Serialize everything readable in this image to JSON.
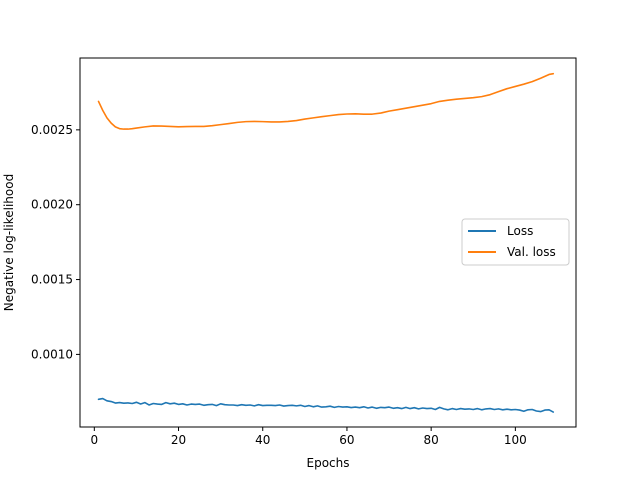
{
  "chart_data": {
    "type": "line",
    "title": "",
    "xlabel": "Epochs",
    "ylabel": "Negative log-likelihood",
    "xlim": [
      -3.4,
      114.4
    ],
    "ylim": [
      0.000515,
      0.00298
    ],
    "xticks": [
      0,
      20,
      40,
      60,
      80,
      100
    ],
    "yticks": [
      0.001,
      0.0015,
      0.002,
      0.0025
    ],
    "xtick_labels": [
      "0",
      "20",
      "40",
      "60",
      "80",
      "100"
    ],
    "ytick_labels": [
      "0.0010",
      "0.0015",
      "0.0020",
      "0.0025"
    ],
    "grid": false,
    "legend": {
      "position": "center-right"
    },
    "series": [
      {
        "name": "Loss",
        "color": "#1f77b4",
        "x": [
          1,
          2,
          3,
          4,
          5,
          6,
          7,
          8,
          9,
          10,
          11,
          12,
          13,
          14,
          15,
          16,
          17,
          18,
          19,
          20,
          21,
          22,
          23,
          24,
          25,
          26,
          27,
          28,
          29,
          30,
          31,
          32,
          33,
          34,
          35,
          36,
          37,
          38,
          39,
          40,
          41,
          42,
          43,
          44,
          45,
          46,
          47,
          48,
          49,
          50,
          51,
          52,
          53,
          54,
          55,
          56,
          57,
          58,
          59,
          60,
          61,
          62,
          63,
          64,
          65,
          66,
          67,
          68,
          69,
          70,
          71,
          72,
          73,
          74,
          75,
          76,
          77,
          78,
          79,
          80,
          81,
          82,
          83,
          84,
          85,
          86,
          87,
          88,
          89,
          90,
          91,
          92,
          93,
          94,
          95,
          96,
          97,
          98,
          99,
          100,
          101,
          102,
          103,
          104,
          105,
          106,
          107,
          108,
          109
        ],
        "values": [
          0.0007,
          0.000705,
          0.00069,
          0.000685,
          0.000675,
          0.000678,
          0.000674,
          0.000676,
          0.000672,
          0.00068,
          0.000669,
          0.000678,
          0.000662,
          0.000672,
          0.000668,
          0.000666,
          0.000678,
          0.00067,
          0.000674,
          0.000666,
          0.00067,
          0.000662,
          0.000668,
          0.000666,
          0.000668,
          0.00066,
          0.000664,
          0.000666,
          0.000658,
          0.00067,
          0.000664,
          0.000662,
          0.000662,
          0.000658,
          0.000664,
          0.00066,
          0.000662,
          0.000656,
          0.000664,
          0.000658,
          0.00066,
          0.00066,
          0.000658,
          0.000662,
          0.000655,
          0.000658,
          0.00066,
          0.000656,
          0.00066,
          0.000652,
          0.000658,
          0.00065,
          0.000656,
          0.000648,
          0.00065,
          0.000654,
          0.000646,
          0.000652,
          0.000648,
          0.00065,
          0.000645,
          0.000648,
          0.000644,
          0.00065,
          0.000642,
          0.000648,
          0.00064,
          0.000646,
          0.000644,
          0.000648,
          0.00064,
          0.000644,
          0.000638,
          0.000646,
          0.000638,
          0.000644,
          0.000636,
          0.000642,
          0.000638,
          0.00064,
          0.000632,
          0.000646,
          0.000636,
          0.00063,
          0.000638,
          0.000632,
          0.000638,
          0.000634,
          0.000636,
          0.000632,
          0.000638,
          0.00063,
          0.000636,
          0.000638,
          0.000632,
          0.000636,
          0.00063,
          0.000634,
          0.00063,
          0.000632,
          0.000628,
          0.00062,
          0.00063,
          0.000632,
          0.000622,
          0.000618,
          0.000628,
          0.00063,
          0.000615
        ]
      },
      {
        "name": "Val. loss",
        "color": "#ff7f0e",
        "x": [
          1,
          2,
          3,
          4,
          5,
          6,
          7,
          8,
          9,
          10,
          12,
          14,
          16,
          18,
          20,
          22,
          24,
          26,
          28,
          30,
          32,
          34,
          36,
          38,
          40,
          42,
          44,
          46,
          48,
          50,
          52,
          54,
          56,
          58,
          60,
          62,
          64,
          66,
          68,
          70,
          72,
          74,
          76,
          78,
          80,
          82,
          84,
          86,
          88,
          90,
          92,
          94,
          96,
          98,
          100,
          102,
          104,
          106,
          108,
          109
        ],
        "values": [
          0.00269,
          0.00263,
          0.00258,
          0.002545,
          0.00252,
          0.002508,
          0.002505,
          0.002505,
          0.002508,
          0.002512,
          0.00252,
          0.002526,
          0.002525,
          0.002523,
          0.00252,
          0.002522,
          0.002523,
          0.002523,
          0.002528,
          0.002535,
          0.002542,
          0.00255,
          0.002555,
          0.002556,
          0.002555,
          0.002553,
          0.002553,
          0.002556,
          0.002562,
          0.002572,
          0.00258,
          0.002588,
          0.002595,
          0.002602,
          0.002606,
          0.002607,
          0.002605,
          0.002605,
          0.002612,
          0.002625,
          0.002635,
          0.002645,
          0.002655,
          0.002665,
          0.002675,
          0.00269,
          0.002698,
          0.002705,
          0.00271,
          0.002715,
          0.002722,
          0.002735,
          0.002755,
          0.002775,
          0.00279,
          0.002805,
          0.002822,
          0.002845,
          0.00287,
          0.002875
        ]
      }
    ]
  }
}
